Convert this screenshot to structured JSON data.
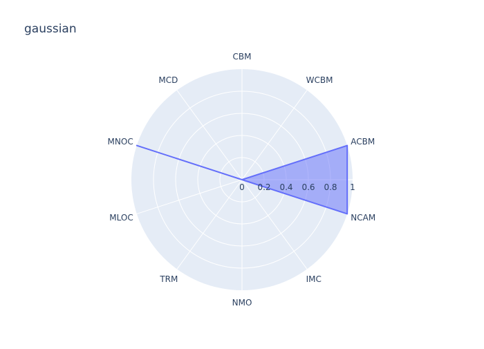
{
  "chart_data": {
    "type": "radar",
    "title": "gaussian",
    "categories": [
      "ACBM",
      "WCBM",
      "CBM",
      "MCD",
      "MNOC",
      "MLOC",
      "TRM",
      "NMO",
      "IMC",
      "NCAM"
    ],
    "series": [
      {
        "values": [
          1,
          0,
          0,
          0,
          1,
          0,
          0,
          0,
          0,
          1
        ]
      }
    ],
    "radial_range": [
      0,
      1
    ],
    "radial_ticks": [
      0,
      0.2,
      0.4,
      0.6,
      0.8,
      1
    ],
    "radial_tick_labels": [
      "0",
      "0.2",
      "0.4",
      "0.6",
      "0.8",
      "1"
    ],
    "grid": true,
    "legend": "none"
  },
  "colors": {
    "background": "#e5ecf6",
    "grid": "#ffffff",
    "series_line": "#636efa",
    "series_fill": "rgba(99,110,250,0.5)",
    "text": "#2a3f5f"
  }
}
